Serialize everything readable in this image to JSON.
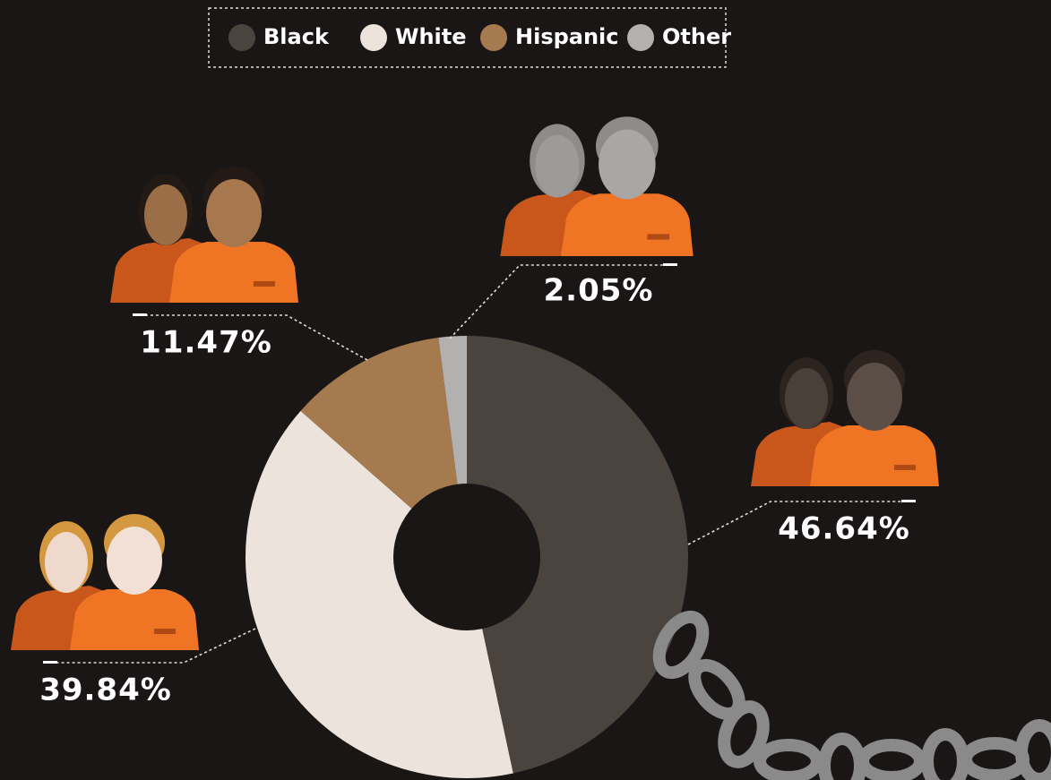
{
  "chart_data": {
    "type": "pie",
    "donut": true,
    "categories": [
      "Black",
      "White",
      "Hispanic",
      "Other"
    ],
    "series": [
      {
        "values": [
          46.64,
          39.84,
          11.47,
          2.05
        ],
        "value_labels": [
          "46.64%",
          "39.84%",
          "11.47%",
          "2.05%"
        ],
        "colors": [
          "#4b433d",
          "#ece4dc",
          "#a67a4f",
          "#b3b1af"
        ]
      }
    ]
  }
}
